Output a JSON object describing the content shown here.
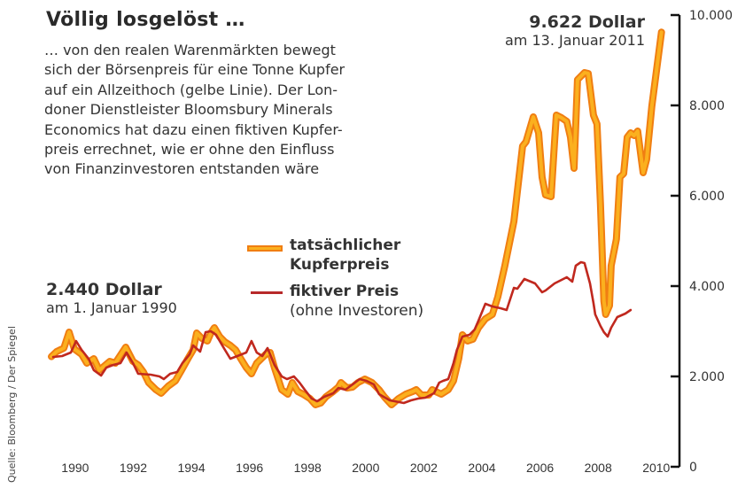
{
  "chart_data": {
    "type": "line",
    "title": "Völlig losgelöst …",
    "subtitle_lines": [
      "… von den realen Warenmärkten bewegt",
      "sich der Börsenpreis für eine Tonne Kupfer",
      "auf ein Allzeithoch (gelbe Linie). Der Lon-",
      "doner Dienstleister Bloomsbury Minerals",
      "Economics hat dazu einen fiktiven Kupfer-",
      "preis errechnet, wie er ohne den Einfluss",
      "von Finanzinvestoren entstanden wäre"
    ],
    "xlabel": "",
    "ylabel": "",
    "xlim": [
      1990,
      2011.04
    ],
    "ylim": [
      0,
      10000
    ],
    "grid": false,
    "y_axis_position": "right",
    "x_ticks": [
      "1990",
      "1992",
      "1994",
      "1996",
      "1998",
      "2000",
      "2002",
      "2004",
      "2006",
      "2008",
      "2010"
    ],
    "y_ticks": [
      {
        "value": 0,
        "label": "0"
      },
      {
        "value": 2000,
        "label": "2.000"
      },
      {
        "value": 4000,
        "label": "4.000"
      },
      {
        "value": 6000,
        "label": "6.000"
      },
      {
        "value": 8000,
        "label": "8.000"
      },
      {
        "value": 10000,
        "label": "10.000"
      }
    ],
    "legend_position": "center",
    "series": [
      {
        "name": "tatsächlicher Kupferpreis",
        "color": "#fbb01e",
        "outline": "#f07e12",
        "points": [
          [
            1990.03,
            2440
          ],
          [
            1990.21,
            2549
          ],
          [
            1990.46,
            2627
          ],
          [
            1990.64,
            2980
          ],
          [
            1990.82,
            2608
          ],
          [
            1991.07,
            2490
          ],
          [
            1991.25,
            2294
          ],
          [
            1991.49,
            2392
          ],
          [
            1991.68,
            2137
          ],
          [
            1991.86,
            2235
          ],
          [
            1992.04,
            2333
          ],
          [
            1992.23,
            2294
          ],
          [
            1992.47,
            2529
          ],
          [
            1992.59,
            2647
          ],
          [
            1992.84,
            2333
          ],
          [
            1993.02,
            2255
          ],
          [
            1993.2,
            2098
          ],
          [
            1993.38,
            1863
          ],
          [
            1993.63,
            1706
          ],
          [
            1993.81,
            1627
          ],
          [
            1994.05,
            1784
          ],
          [
            1994.3,
            1902
          ],
          [
            1994.51,
            2137
          ],
          [
            1994.73,
            2392
          ],
          [
            1994.91,
            2588
          ],
          [
            1995.03,
            2961
          ],
          [
            1995.21,
            2843
          ],
          [
            1995.4,
            2784
          ],
          [
            1995.52,
            2961
          ],
          [
            1995.64,
            3078
          ],
          [
            1995.82,
            2882
          ],
          [
            1996.0,
            2765
          ],
          [
            1996.19,
            2686
          ],
          [
            1996.37,
            2588
          ],
          [
            1996.55,
            2392
          ],
          [
            1996.74,
            2196
          ],
          [
            1996.92,
            2059
          ],
          [
            1997.1,
            2294
          ],
          [
            1997.41,
            2490
          ],
          [
            1997.56,
            2529
          ],
          [
            1997.71,
            2196
          ],
          [
            1997.96,
            1706
          ],
          [
            1998.17,
            1608
          ],
          [
            1998.32,
            1863
          ],
          [
            1998.51,
            1667
          ],
          [
            1998.69,
            1608
          ],
          [
            1998.93,
            1510
          ],
          [
            1999.12,
            1373
          ],
          [
            1999.3,
            1412
          ],
          [
            1999.48,
            1549
          ],
          [
            1999.73,
            1667
          ],
          [
            1999.91,
            1765
          ],
          [
            2000.0,
            1863
          ],
          [
            2000.21,
            1745
          ],
          [
            2000.4,
            1765
          ],
          [
            2000.58,
            1863
          ],
          [
            2000.82,
            1941
          ],
          [
            2001.07,
            1863
          ],
          [
            2001.31,
            1706
          ],
          [
            2001.49,
            1549
          ],
          [
            2001.74,
            1373
          ],
          [
            2001.98,
            1510
          ],
          [
            2002.23,
            1608
          ],
          [
            2002.47,
            1667
          ],
          [
            2002.59,
            1706
          ],
          [
            2002.77,
            1588
          ],
          [
            2003.02,
            1588
          ],
          [
            2003.14,
            1706
          ],
          [
            2003.32,
            1647
          ],
          [
            2003.45,
            1608
          ],
          [
            2003.69,
            1706
          ],
          [
            2003.87,
            1902
          ],
          [
            2004.05,
            2392
          ],
          [
            2004.18,
            2922
          ],
          [
            2004.36,
            2784
          ],
          [
            2004.54,
            2824
          ],
          [
            2004.73,
            3078
          ],
          [
            2004.97,
            3275
          ],
          [
            2005.21,
            3373
          ],
          [
            2005.4,
            3765
          ],
          [
            2005.64,
            4451
          ],
          [
            2005.95,
            5431
          ],
          [
            2006.25,
            7098
          ],
          [
            2006.37,
            7196
          ],
          [
            2006.62,
            7745
          ],
          [
            2006.8,
            7392
          ],
          [
            2006.92,
            6412
          ],
          [
            2007.04,
            6020
          ],
          [
            2007.23,
            5980
          ],
          [
            2007.35,
            7196
          ],
          [
            2007.41,
            7784
          ],
          [
            2007.59,
            7725
          ],
          [
            2007.77,
            7647
          ],
          [
            2007.9,
            7294
          ],
          [
            2008.02,
            6608
          ],
          [
            2008.14,
            8569
          ],
          [
            2008.38,
            8725
          ],
          [
            2008.51,
            8706
          ],
          [
            2008.69,
            7784
          ],
          [
            2008.81,
            7588
          ],
          [
            2008.93,
            5824
          ],
          [
            2009.05,
            3667
          ],
          [
            2009.11,
            3373
          ],
          [
            2009.24,
            3569
          ],
          [
            2009.3,
            4451
          ],
          [
            2009.48,
            5039
          ],
          [
            2009.6,
            6412
          ],
          [
            2009.73,
            6490
          ],
          [
            2009.85,
            7294
          ],
          [
            2009.97,
            7392
          ],
          [
            2010.09,
            7333
          ],
          [
            2010.21,
            7431
          ],
          [
            2010.4,
            6510
          ],
          [
            2010.52,
            6804
          ],
          [
            2010.7,
            7980
          ],
          [
            2011.03,
            9622
          ]
        ]
      },
      {
        "name": "fiktiver Preis (ohne Investoren)",
        "color": "#c0281e",
        "points": [
          [
            1990.09,
            2431
          ],
          [
            1990.4,
            2451
          ],
          [
            1990.7,
            2529
          ],
          [
            1990.88,
            2784
          ],
          [
            1991.07,
            2588
          ],
          [
            1991.31,
            2392
          ],
          [
            1991.49,
            2137
          ],
          [
            1991.74,
            2020
          ],
          [
            1991.92,
            2196
          ],
          [
            1992.16,
            2255
          ],
          [
            1992.41,
            2294
          ],
          [
            1992.62,
            2529
          ],
          [
            1992.84,
            2294
          ],
          [
            1993.02,
            2059
          ],
          [
            1993.45,
            2039
          ],
          [
            1993.75,
            2000
          ],
          [
            1993.9,
            1941
          ],
          [
            1994.12,
            2059
          ],
          [
            1994.36,
            2098
          ],
          [
            1994.54,
            2294
          ],
          [
            1994.79,
            2490
          ],
          [
            1994.91,
            2686
          ],
          [
            1995.15,
            2549
          ],
          [
            1995.34,
            2980
          ],
          [
            1995.52,
            3000
          ],
          [
            1995.7,
            2922
          ],
          [
            1995.95,
            2647
          ],
          [
            1996.19,
            2392
          ],
          [
            1996.43,
            2451
          ],
          [
            1996.74,
            2529
          ],
          [
            1996.92,
            2784
          ],
          [
            1997.1,
            2529
          ],
          [
            1997.29,
            2451
          ],
          [
            1997.47,
            2627
          ],
          [
            1997.71,
            2255
          ],
          [
            1997.96,
            2000
          ],
          [
            1998.14,
            1941
          ],
          [
            1998.38,
            2000
          ],
          [
            1998.57,
            1863
          ],
          [
            1998.75,
            1706
          ],
          [
            1998.99,
            1510
          ],
          [
            1999.18,
            1451
          ],
          [
            1999.42,
            1549
          ],
          [
            1999.73,
            1627
          ],
          [
            1999.91,
            1745
          ],
          [
            2000.15,
            1706
          ],
          [
            2000.4,
            1824
          ],
          [
            2000.64,
            1941
          ],
          [
            2000.88,
            1902
          ],
          [
            2001.13,
            1824
          ],
          [
            2001.31,
            1608
          ],
          [
            2001.68,
            1471
          ],
          [
            2002.16,
            1412
          ],
          [
            2002.41,
            1471
          ],
          [
            2002.65,
            1510
          ],
          [
            2002.9,
            1529
          ],
          [
            2003.2,
            1627
          ],
          [
            2003.38,
            1863
          ],
          [
            2003.51,
            1902
          ],
          [
            2003.69,
            1941
          ],
          [
            2003.87,
            2294
          ],
          [
            2003.99,
            2588
          ],
          [
            2004.18,
            2882
          ],
          [
            2004.42,
            2922
          ],
          [
            2004.6,
            3039
          ],
          [
            2004.73,
            3235
          ],
          [
            2004.97,
            3608
          ],
          [
            2005.21,
            3549
          ],
          [
            2005.49,
            3510
          ],
          [
            2005.7,
            3471
          ],
          [
            2005.95,
            3961
          ],
          [
            2006.07,
            3941
          ],
          [
            2006.31,
            4157
          ],
          [
            2006.68,
            4059
          ],
          [
            2006.92,
            3863
          ],
          [
            2007.04,
            3902
          ],
          [
            2007.35,
            4059
          ],
          [
            2007.77,
            4196
          ],
          [
            2007.96,
            4098
          ],
          [
            2008.08,
            4451
          ],
          [
            2008.26,
            4529
          ],
          [
            2008.38,
            4510
          ],
          [
            2008.57,
            4059
          ],
          [
            2008.69,
            3627
          ],
          [
            2008.75,
            3373
          ],
          [
            2008.93,
            3118
          ],
          [
            2009.05,
            2980
          ],
          [
            2009.18,
            2882
          ],
          [
            2009.3,
            3078
          ],
          [
            2009.51,
            3314
          ],
          [
            2009.79,
            3392
          ],
          [
            2009.97,
            3471
          ]
        ]
      }
    ],
    "annotations": [
      {
        "value": "9.622 Dollar",
        "text": "am 13. Januar 2011"
      },
      {
        "value": "2.440 Dollar",
        "text": "am 1. Januar 1990"
      }
    ],
    "source": "Quelle: Bloomberg / Der Spiegel"
  },
  "legend": [
    {
      "label": "tatsächlicher",
      "sub": "Kupferpreis"
    },
    {
      "label": "fiktiver Preis",
      "sub": "(ohne Investoren)"
    }
  ]
}
